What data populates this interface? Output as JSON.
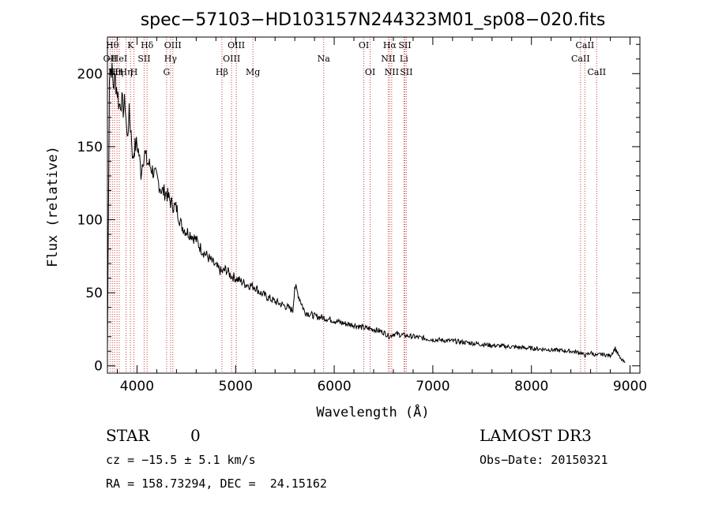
{
  "chart_data": {
    "type": "line",
    "title": "spec−57103−HD103157N244323M01_sp08−020.fits",
    "xlabel": "Wavelength (Å)",
    "ylabel": "Flux (relative)",
    "xlim": [
      3700,
      9100
    ],
    "ylim": [
      -5,
      225
    ],
    "xticks": [
      4000,
      5000,
      6000,
      7000,
      8000,
      9000
    ],
    "yticks": [
      0,
      50,
      100,
      150,
      200
    ],
    "xtick_labels": [
      "4000",
      "5000",
      "6000",
      "7000",
      "8000",
      "9000"
    ],
    "ytick_labels": [
      "0",
      "50",
      "100",
      "150",
      "200"
    ],
    "series": [
      {
        "name": "flux",
        "x": [
          3700,
          3720,
          3740,
          3760,
          3780,
          3800,
          3820,
          3840,
          3860,
          3880,
          3900,
          3920,
          3940,
          3960,
          3970,
          3980,
          4000,
          4020,
          4040,
          4060,
          4080,
          4100,
          4120,
          4150,
          4200,
          4250,
          4300,
          4340,
          4360,
          4400,
          4450,
          4500,
          4550,
          4600,
          4650,
          4700,
          4750,
          4800,
          4861,
          4900,
          4950,
          5000,
          5050,
          5100,
          5150,
          5200,
          5250,
          5300,
          5400,
          5500,
          5580,
          5600,
          5700,
          5800,
          5890,
          6000,
          6100,
          6200,
          6300,
          6400,
          6500,
          6563,
          6600,
          6700,
          6800,
          6900,
          7000,
          7200,
          7400,
          7600,
          7800,
          8000,
          8200,
          8400,
          8500,
          8542,
          8600,
          8662,
          8700,
          8800,
          8850,
          8900,
          8950
        ],
        "y": [
          10,
          200,
          205,
          192,
          196,
          188,
          178,
          182,
          176,
          180,
          155,
          172,
          160,
          140,
          148,
          150,
          152,
          145,
          132,
          142,
          145,
          140,
          138,
          135,
          128,
          120,
          118,
          112,
          110,
          108,
          96,
          92,
          90,
          86,
          80,
          76,
          72,
          68,
          64,
          66,
          62,
          60,
          58,
          56,
          55,
          54,
          50,
          48,
          44,
          41,
          38,
          55,
          37,
          34,
          33,
          31,
          29,
          28,
          26,
          25,
          23,
          20,
          22,
          21,
          20,
          19,
          18,
          17,
          15.5,
          14,
          13,
          12,
          11,
          10,
          9,
          7,
          9,
          7,
          8,
          7,
          12,
          5,
          2
        ]
      }
    ],
    "lines": [
      {
        "wave": 3727,
        "label": "OII",
        "row": 2
      },
      {
        "wave": 3750,
        "label": "Hθ",
        "row": 1
      },
      {
        "wave": 3771,
        "label": "Hθ",
        "row": 3
      },
      {
        "wave": 3797,
        "label": "Hη",
        "row": 3
      },
      {
        "wave": 3820,
        "label": "HeI",
        "row": 2
      },
      {
        "wave": 3889,
        "label": "Hη",
        "row": 3
      },
      {
        "wave": 3934,
        "label": "K",
        "row": 1
      },
      {
        "wave": 3969,
        "label": "H",
        "row": 3
      },
      {
        "wave": 4072,
        "label": "SII",
        "row": 2
      },
      {
        "wave": 4102,
        "label": "Hδ",
        "row": 1
      },
      {
        "wave": 4300,
        "label": "G",
        "row": 3
      },
      {
        "wave": 4340,
        "label": "Hγ",
        "row": 2
      },
      {
        "wave": 4363,
        "label": "OIII",
        "row": 1
      },
      {
        "wave": 4861,
        "label": "Hβ",
        "row": 3
      },
      {
        "wave": 4959,
        "label": "OIII",
        "row": 2
      },
      {
        "wave": 5007,
        "label": "OIII",
        "row": 1
      },
      {
        "wave": 5175,
        "label": "Mg",
        "row": 3
      },
      {
        "wave": 5893,
        "label": "Na",
        "row": 2
      },
      {
        "wave": 6300,
        "label": "OI",
        "row": 1
      },
      {
        "wave": 6364,
        "label": "OI",
        "row": 3
      },
      {
        "wave": 6548,
        "label": "NII",
        "row": 2
      },
      {
        "wave": 6563,
        "label": "Hα",
        "row": 1
      },
      {
        "wave": 6583,
        "label": "NII",
        "row": 3
      },
      {
        "wave": 6707,
        "label": "Li",
        "row": 2
      },
      {
        "wave": 6716,
        "label": "SII",
        "row": 1
      },
      {
        "wave": 6731,
        "label": "SII",
        "row": 3
      },
      {
        "wave": 8498,
        "label": "CaII",
        "row": 2
      },
      {
        "wave": 8542,
        "label": "CaII",
        "row": 1
      },
      {
        "wave": 8662,
        "label": "CaII",
        "row": 3
      }
    ],
    "line_color": "#cc3b3b"
  },
  "info": {
    "object_class": "STAR",
    "subclass": "0",
    "survey": "LAMOST DR3",
    "cz": "cz = −15.5 ± 5.1 km/s",
    "obs_date": "Obs−Date: 20150321",
    "radec": "RA = 158.73294, DEC =  24.15162"
  }
}
